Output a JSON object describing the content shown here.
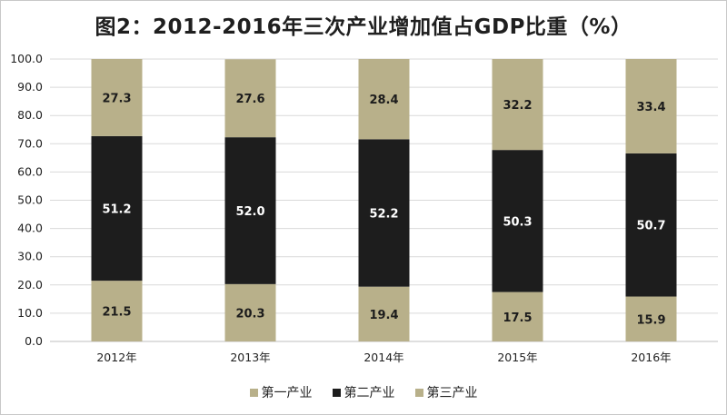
{
  "chart_data": {
    "type": "bar",
    "stacked": true,
    "title": "图2：2012-2016年三次产业增加值占GDP比重（%）",
    "categories": [
      "2012年",
      "2013年",
      "2014年",
      "2015年",
      "2016年"
    ],
    "series": [
      {
        "name": "第一产业",
        "values": [
          21.5,
          20.3,
          19.4,
          17.5,
          15.9
        ],
        "color": "#b8b08a",
        "label_color": "#1c1c1c"
      },
      {
        "name": "第二产业",
        "values": [
          51.2,
          52.0,
          52.2,
          50.3,
          50.7
        ],
        "color": "#1d1d1d",
        "label_color": "#ffffff"
      },
      {
        "name": "第三产业",
        "values": [
          27.3,
          27.6,
          28.4,
          32.2,
          33.4
        ],
        "color": "#b8b08a",
        "label_color": "#1c1c1c"
      }
    ],
    "ylim": [
      0,
      100
    ],
    "yticks": [
      "0.0",
      "10.0",
      "20.0",
      "30.0",
      "40.0",
      "50.0",
      "60.0",
      "70.0",
      "80.0",
      "90.0",
      "100.0"
    ],
    "grid": true,
    "legend_position": "bottom"
  }
}
